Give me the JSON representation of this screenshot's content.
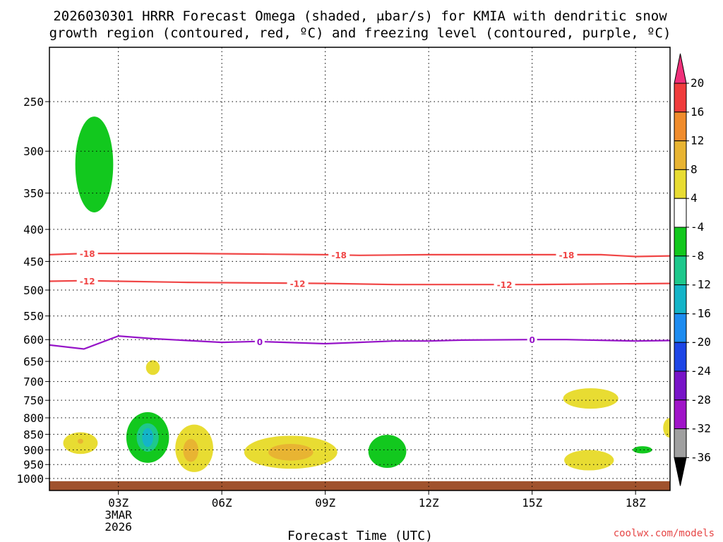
{
  "chart_data": {
    "type": "contour",
    "title_line1": "2026030301 HRRR Forecast Omega (shaded, μbar/s) for KMIA with dendritic snow",
    "title_line2": "growth region (contoured, red, ºC) and freezing level (contoured, purple, ºC)",
    "xlabel": "Forecast Time (UTC)",
    "watermark": "coolwx.com/models",
    "x_range_hours": [
      1,
      19
    ],
    "x_ticks": [
      {
        "hour": 3,
        "label": "03Z",
        "sub1": "3MAR",
        "sub2": "2026"
      },
      {
        "hour": 6,
        "label": "06Z"
      },
      {
        "hour": 9,
        "label": "09Z"
      },
      {
        "hour": 12,
        "label": "12Z"
      },
      {
        "hour": 15,
        "label": "15Z"
      },
      {
        "hour": 18,
        "label": "18Z"
      }
    ],
    "y_ticks": [
      250,
      300,
      350,
      400,
      450,
      500,
      550,
      600,
      650,
      700,
      750,
      800,
      850,
      900,
      950,
      1000
    ],
    "colorbar": {
      "labels": [
        "20",
        "16",
        "12",
        "8",
        "4",
        "-4",
        "-8",
        "-12",
        "-16",
        "-20",
        "-24",
        "-28",
        "-32",
        "-36"
      ],
      "colors": [
        "#f0307a",
        "#f03c3c",
        "#f08c2c",
        "#e8b432",
        "#e8dc32",
        "#ffffff",
        "#12c81e",
        "#1ec88c",
        "#14b4c8",
        "#1e8cf0",
        "#1e46e6",
        "#7814c8",
        "#a014c8",
        "#a0a0a0",
        "#000000"
      ]
    },
    "isotherms": [
      {
        "name": "-18",
        "color": "#f04646",
        "label": "-18",
        "points": [
          [
            1,
            439
          ],
          [
            2,
            437
          ],
          [
            3,
            437
          ],
          [
            5,
            437
          ],
          [
            7,
            438
          ],
          [
            9,
            439
          ],
          [
            10,
            440
          ],
          [
            12,
            439
          ],
          [
            15,
            439
          ],
          [
            17,
            439
          ],
          [
            18,
            442
          ],
          [
            19,
            441
          ]
        ],
        "label_hours": [
          2.1,
          9.4,
          16.0
        ]
      },
      {
        "name": "-12",
        "color": "#f04646",
        "label": "-12",
        "points": [
          [
            1,
            484
          ],
          [
            2,
            483
          ],
          [
            3,
            484
          ],
          [
            5,
            486
          ],
          [
            7,
            487
          ],
          [
            9,
            488
          ],
          [
            11,
            490
          ],
          [
            13,
            490
          ],
          [
            15,
            490
          ],
          [
            17,
            489
          ],
          [
            19,
            488
          ]
        ],
        "label_hours": [
          2.1,
          8.2,
          14.2
        ]
      },
      {
        "name": "0",
        "color": "#9614c8",
        "label": "0",
        "points": [
          [
            1,
            612
          ],
          [
            2,
            621
          ],
          [
            3,
            592
          ],
          [
            4,
            598
          ],
          [
            5,
            602
          ],
          [
            6,
            606
          ],
          [
            7,
            604
          ],
          [
            9,
            609
          ],
          [
            11,
            603
          ],
          [
            12,
            603
          ],
          [
            13,
            601
          ],
          [
            15,
            600
          ],
          [
            16,
            600
          ],
          [
            18,
            603
          ],
          [
            19,
            602
          ]
        ],
        "label_hours": [
          7.1,
          15.0
        ]
      }
    ],
    "omega_blobs": [
      {
        "hour": 2.3,
        "pressure": 315,
        "rx_h": 0.55,
        "ry_p": 55,
        "color": "#12c81e",
        "value": "-4 to -8"
      },
      {
        "hour": 4.0,
        "pressure": 665,
        "rx_h": 0.2,
        "ry_p": 18,
        "color": "#e8dc32",
        "value": "4 to 8"
      },
      {
        "hour": 1.9,
        "pressure": 878,
        "rx_h": 0.5,
        "ry_p": 35,
        "color": "#e8dc32",
        "value": "4 to 8"
      },
      {
        "hour": 1.9,
        "pressure": 872,
        "rx_h": 0.08,
        "ry_p": 8,
        "color": "#e8b432",
        "value": "8 to 12"
      },
      {
        "hour": 3.85,
        "pressure": 860,
        "rx_h": 0.62,
        "ry_p": 80,
        "color": "#12c81e",
        "value": "-4 to -8"
      },
      {
        "hour": 3.85,
        "pressure": 860,
        "rx_h": 0.32,
        "ry_p": 45,
        "color": "#1ec88c",
        "value": "-8 to -12"
      },
      {
        "hour": 3.85,
        "pressure": 860,
        "rx_h": 0.16,
        "ry_p": 30,
        "color": "#14b4c8",
        "value": "-12 to -16"
      },
      {
        "hour": 5.2,
        "pressure": 895,
        "rx_h": 0.55,
        "ry_p": 78,
        "color": "#e8dc32",
        "value": "4 to 8"
      },
      {
        "hour": 5.1,
        "pressure": 902,
        "rx_h": 0.22,
        "ry_p": 38,
        "color": "#e8b432",
        "value": "8 to 12"
      },
      {
        "hour": 8.0,
        "pressure": 908,
        "rx_h": 1.35,
        "ry_p": 55,
        "color": "#e8dc32",
        "value": "4 to 8"
      },
      {
        "hour": 8.0,
        "pressure": 908,
        "rx_h": 0.65,
        "ry_p": 28,
        "color": "#e8b432",
        "value": "8 to 12"
      },
      {
        "hour": 10.8,
        "pressure": 905,
        "rx_h": 0.55,
        "ry_p": 55,
        "color": "#12c81e",
        "value": "-4 to -8"
      },
      {
        "hour": 16.7,
        "pressure": 745,
        "rx_h": 0.8,
        "ry_p": 28,
        "color": "#e8dc32",
        "value": "4 to 8"
      },
      {
        "hour": 16.65,
        "pressure": 935,
        "rx_h": 0.72,
        "ry_p": 35,
        "color": "#e8dc32",
        "value": "4 to 8"
      },
      {
        "hour": 18.2,
        "pressure": 900,
        "rx_h": 0.28,
        "ry_p": 12,
        "color": "#12c81e",
        "value": "-4 to -8"
      },
      {
        "hour": 19.0,
        "pressure": 830,
        "rx_h": 0.2,
        "ry_p": 30,
        "color": "#e8dc32",
        "value": "4 to 8"
      }
    ],
    "ground": {
      "color": "#a0522d",
      "pressure_top": 1010
    }
  }
}
